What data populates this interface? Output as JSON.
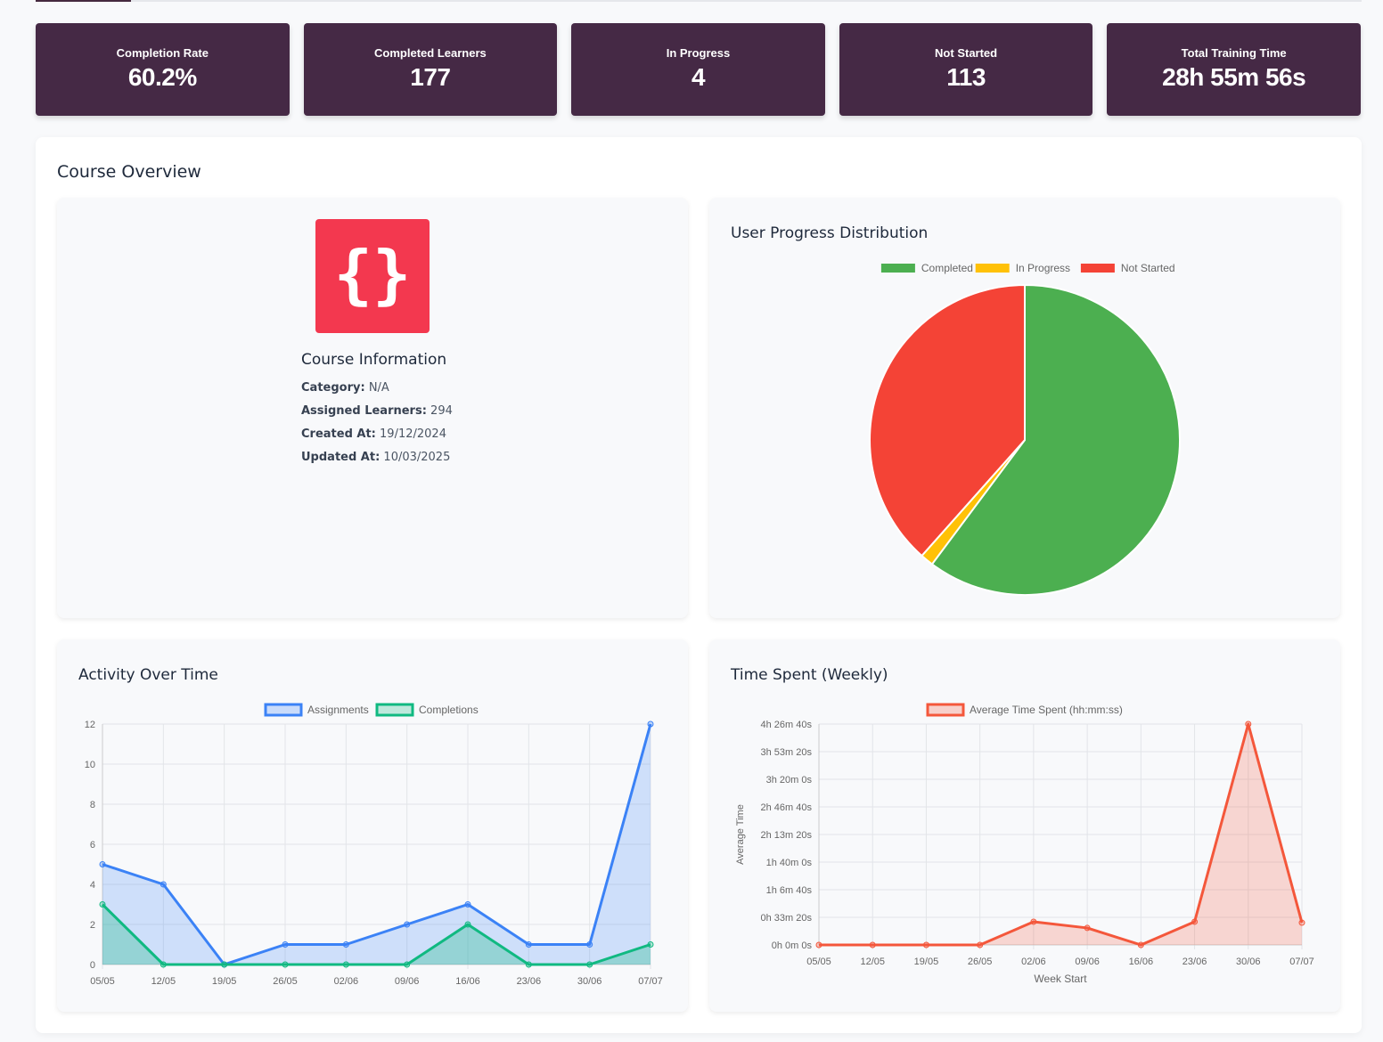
{
  "stats": [
    {
      "label": "Completion Rate",
      "value": "60.2%"
    },
    {
      "label": "Completed Learners",
      "value": "177"
    },
    {
      "label": "In Progress",
      "value": "4"
    },
    {
      "label": "Not Started",
      "value": "113"
    },
    {
      "label": "Total Training Time",
      "value": "28h 55m 56s"
    }
  ],
  "overview": {
    "title": "Course Overview",
    "course": {
      "icon": "code-braces-icon",
      "icon_glyph": "{}",
      "icon_color": "#f3384f",
      "title": "Course Information",
      "fields": [
        {
          "label": "Category:",
          "value": "N/A"
        },
        {
          "label": "Assigned Learners:",
          "value": "294"
        },
        {
          "label": "Created At:",
          "value": "19/12/2024"
        },
        {
          "label": "Updated At:",
          "value": "10/03/2025"
        }
      ]
    },
    "progress_title": "User Progress Distribution",
    "activity_title": "Activity Over Time",
    "time_title": "Time Spent (Weekly)"
  },
  "chart_data": [
    {
      "type": "pie",
      "title": "User Progress Distribution",
      "categories": [
        "Completed",
        "In Progress",
        "Not Started"
      ],
      "values": [
        177,
        4,
        113
      ],
      "colors": [
        "#4caf50",
        "#ffc107",
        "#f44336"
      ],
      "legend": "top"
    },
    {
      "type": "line",
      "title": "Activity Over Time",
      "x": [
        "05/05",
        "12/05",
        "19/05",
        "26/05",
        "02/06",
        "09/06",
        "16/06",
        "23/06",
        "30/06",
        "07/07"
      ],
      "series": [
        {
          "name": "Assignments",
          "values": [
            5,
            4,
            0,
            1,
            1,
            2,
            3,
            1,
            1,
            12
          ],
          "color": "#3b82f6"
        },
        {
          "name": "Completions",
          "values": [
            3,
            0,
            0,
            0,
            0,
            0,
            2,
            0,
            0,
            1
          ],
          "color": "#10b981"
        }
      ],
      "ylim": [
        0,
        12
      ],
      "yticks": [
        0,
        2,
        4,
        6,
        8,
        10,
        12
      ],
      "grid": true,
      "legend": "top"
    },
    {
      "type": "area",
      "title": "Time Spent (Weekly)",
      "x": [
        "05/05",
        "12/05",
        "19/05",
        "26/05",
        "02/06",
        "09/06",
        "16/06",
        "23/06",
        "30/06",
        "07/07"
      ],
      "series": [
        {
          "name": "Average Time Spent (hh:mm:ss)",
          "values_seconds": [
            0,
            0,
            0,
            0,
            1680,
            1230,
            0,
            1680,
            16000,
            1610
          ],
          "color": "#f4573b"
        }
      ],
      "ylim": [
        0,
        16000
      ],
      "yticks_seconds": [
        0,
        2000,
        4000,
        6000,
        8000,
        10000,
        12000,
        14000,
        16000
      ],
      "ytick_labels": [
        "0h 0m 0s",
        "0h 33m 20s",
        "1h 6m 40s",
        "1h 40m 0s",
        "2h 13m 20s",
        "2h 46m 40s",
        "3h 20m 0s",
        "3h 53m 20s",
        "4h 26m 40s"
      ],
      "xlabel": "Week Start",
      "ylabel": "Average Time",
      "grid": true,
      "legend": "top"
    }
  ]
}
